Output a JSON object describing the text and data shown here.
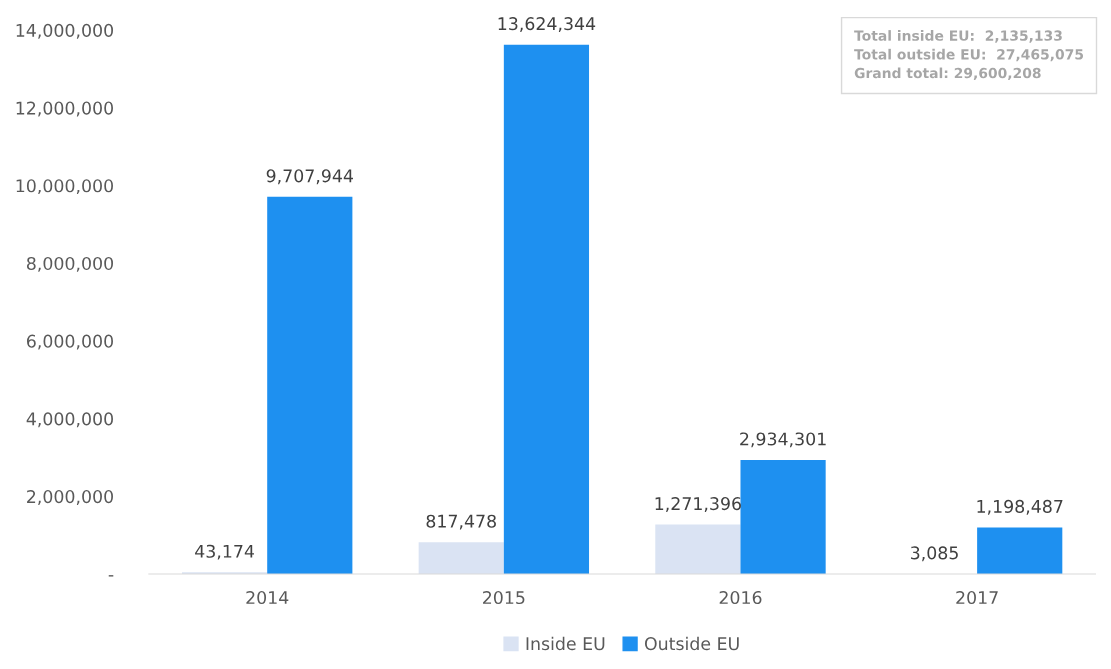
{
  "chart_data": {
    "type": "bar",
    "categories": [
      "2014",
      "2015",
      "2016",
      "2017"
    ],
    "series": [
      {
        "name": "Inside EU",
        "color": "#dae3f3",
        "values": [
          43174,
          817478,
          1271396,
          3085
        ],
        "value_labels": [
          "43,174",
          "817,478",
          "1,271,396",
          "3,085"
        ]
      },
      {
        "name": "Outside EU",
        "color": "#1e90f0",
        "values": [
          9707944,
          13624344,
          2934301,
          1198487
        ],
        "value_labels": [
          "9,707,944",
          "13,624,344",
          "2,934,301",
          "1,198,487"
        ]
      }
    ],
    "ylim": [
      0,
      14000000
    ],
    "yticks": [
      {
        "value": 0,
        "label": "-"
      },
      {
        "value": 2000000,
        "label": "2,000,000"
      },
      {
        "value": 4000000,
        "label": "4,000,000"
      },
      {
        "value": 6000000,
        "label": "6,000,000"
      },
      {
        "value": 8000000,
        "label": "8,000,000"
      },
      {
        "value": 10000000,
        "label": "10,000,000"
      },
      {
        "value": 12000000,
        "label": "12,000,000"
      },
      {
        "value": 14000000,
        "label": "14,000,000"
      }
    ],
    "grid": false,
    "legend": "bottom",
    "annotations": [
      "Total inside EU:  2,135,133\nTotal outside EU:  27,465,075\nGrand total: 29,600,208"
    ]
  }
}
